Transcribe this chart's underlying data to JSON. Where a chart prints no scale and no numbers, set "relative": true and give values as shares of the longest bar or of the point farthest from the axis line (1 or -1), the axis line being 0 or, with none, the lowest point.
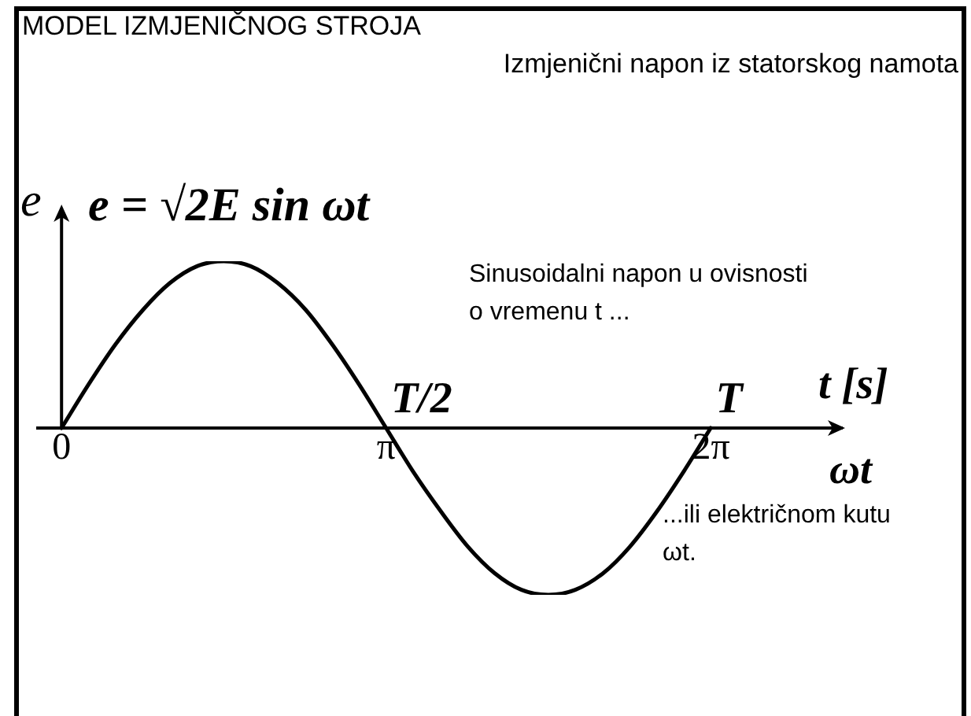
{
  "chart_data": {
    "type": "line",
    "title": "MODEL IZMJENIČNOG STROJA",
    "subtitle": "Izmjenični napon iz statorskog namota",
    "xlabel": "ωt",
    "x2label": "t [s]",
    "ylabel": "e",
    "annotations": [
      "e = √2E sin ωt",
      {
        "text": "T/2",
        "x": 3.1416,
        "y": 0
      },
      {
        "text": "T",
        "x": 6.2832,
        "y": 0
      },
      "Sinusoidalni napon u ovisnosti o vremenu t ...",
      "...ili električnom kutu ωt."
    ],
    "x": [
      0,
      0.26,
      0.52,
      0.79,
      1.05,
      1.31,
      1.57,
      1.83,
      2.09,
      2.36,
      2.62,
      2.88,
      3.14,
      3.4,
      3.67,
      3.93,
      4.19,
      4.45,
      4.71,
      4.97,
      5.24,
      5.5,
      5.76,
      6.02,
      6.28
    ],
    "values": [
      0,
      0.26,
      0.5,
      0.71,
      0.87,
      0.97,
      1,
      0.97,
      0.87,
      0.71,
      0.5,
      0.26,
      0,
      -0.26,
      -0.5,
      -0.71,
      -0.87,
      -0.97,
      -1,
      -0.97,
      -0.87,
      -0.71,
      -0.5,
      -0.26,
      0
    ],
    "color": "#000000",
    "relative": true,
    "xlim": [
      -0.23,
      7.55
    ],
    "xticks": [
      {
        "value": 0,
        "label": "0"
      },
      {
        "value": 3.1416,
        "label": "π"
      },
      {
        "value": 6.2832,
        "label": "2π"
      }
    ],
    "legend": false,
    "grid": false,
    "marker": "none",
    "line_style": "solid"
  }
}
